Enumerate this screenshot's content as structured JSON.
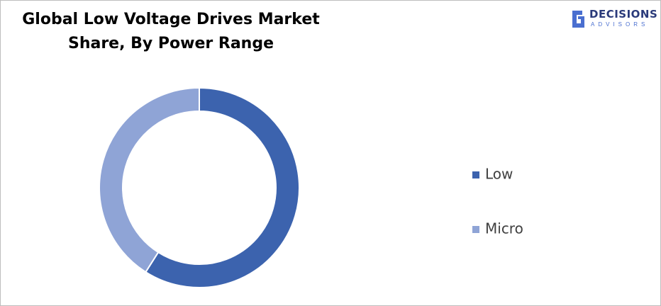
{
  "logo": {
    "name": "DECISIONS",
    "tagline": "ADVISORS"
  },
  "chart_data": {
    "type": "donut",
    "title": "Global Low Voltage Drives Market Share, By Power Range",
    "categories": [
      "Low",
      "Micro"
    ],
    "values": [
      59,
      41
    ],
    "colors": [
      "#3c63ae",
      "#8fa4d6"
    ],
    "legend": "right"
  }
}
